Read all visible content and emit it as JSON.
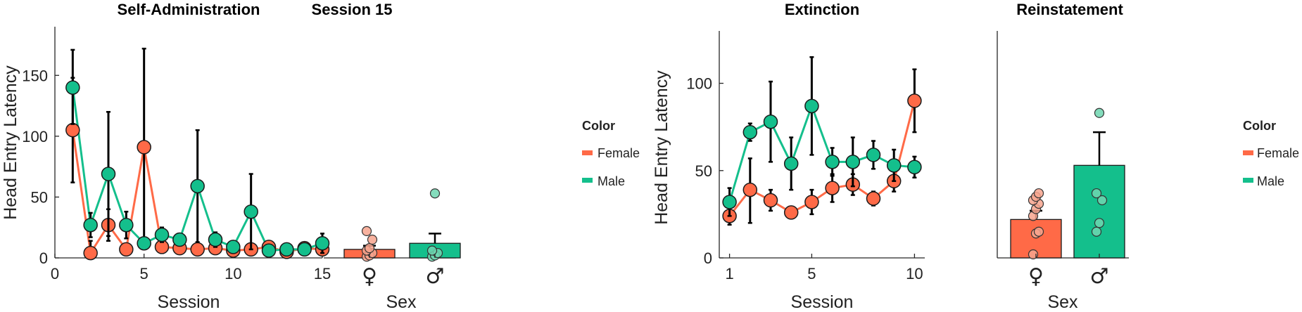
{
  "colors": {
    "female": "#FF6A47",
    "male": "#14BF8C",
    "female_light": "#F7A58E",
    "male_light": "#6ED6B0",
    "errorbar": "#000000"
  },
  "legend": {
    "title": "Color",
    "items": [
      "Female",
      "Male"
    ]
  },
  "chart_data": [
    {
      "type": "line",
      "title": "Self-Administration",
      "xlabel": "Session",
      "ylabel": "Head Entry Latency",
      "xlim": [
        0,
        15
      ],
      "ylim": [
        0,
        190
      ],
      "xticks": [
        "0",
        "5",
        "10",
        "15"
      ],
      "yticks": [
        "0",
        "50",
        "100",
        "150"
      ],
      "x": [
        1,
        2,
        3,
        4,
        5,
        6,
        7,
        8,
        9,
        10,
        11,
        12,
        13,
        14,
        15
      ],
      "series": [
        {
          "name": "Female",
          "values": [
            105,
            4,
            27,
            7,
            91,
            9,
            8,
            7,
            8,
            6,
            7,
            9,
            5,
            8,
            7
          ],
          "err_upper": [
            148,
            14,
            40,
            10,
            172,
            14,
            12,
            10,
            11,
            9,
            10,
            13,
            8,
            11,
            11
          ],
          "err_lower": [
            62,
            0,
            14,
            4,
            10,
            4,
            4,
            4,
            5,
            3,
            4,
            5,
            2,
            5,
            3
          ]
        },
        {
          "name": "Male",
          "values": [
            140,
            27,
            69,
            27,
            12,
            19,
            15,
            59,
            15,
            9,
            38,
            6,
            7,
            7,
            12
          ],
          "err_upper": [
            171,
            37,
            120,
            38,
            14,
            25,
            19,
            105,
            21,
            12,
            69,
            8,
            9,
            9,
            20
          ],
          "err_lower": [
            110,
            17,
            18,
            16,
            10,
            13,
            11,
            13,
            9,
            6,
            7,
            4,
            5,
            5,
            4
          ]
        }
      ]
    },
    {
      "type": "bar",
      "title": "Session 15",
      "xlabel": "Sex",
      "categories": [
        "♀",
        "♂"
      ],
      "ylim": [
        0,
        190
      ],
      "values": [
        7,
        12
      ],
      "err_upper": [
        10,
        20
      ],
      "points": [
        [
          1,
          2,
          4,
          6,
          8,
          15,
          22
        ],
        [
          1,
          2,
          4,
          6,
          53
        ]
      ]
    },
    {
      "type": "line",
      "title": "Extinction",
      "xlabel": "Session",
      "ylabel": "Head Entry Latency",
      "xlim": [
        0.5,
        10.5
      ],
      "ylim": [
        0,
        130
      ],
      "xticks": [
        "1",
        "5",
        "10"
      ],
      "yticks": [
        "0",
        "50",
        "100"
      ],
      "x": [
        1,
        2,
        3,
        4,
        5,
        6,
        7,
        8,
        9,
        10
      ],
      "series": [
        {
          "name": "Female",
          "values": [
            24,
            39,
            33,
            26,
            32,
            40,
            42,
            34,
            44,
            90
          ],
          "err_upper": [
            29,
            57,
            39,
            29,
            39,
            48,
            48,
            38,
            50,
            108
          ],
          "err_lower": [
            19,
            20,
            27,
            23,
            25,
            32,
            36,
            30,
            38,
            72
          ]
        },
        {
          "name": "Male",
          "values": [
            32,
            72,
            78,
            54,
            87,
            55,
            55,
            59,
            53,
            52
          ],
          "err_upper": [
            40,
            77,
            101,
            69,
            115,
            63,
            69,
            67,
            62,
            58
          ],
          "err_lower": [
            24,
            67,
            55,
            39,
            59,
            47,
            41,
            51,
            44,
            46
          ]
        }
      ]
    },
    {
      "type": "bar",
      "title": "Reinstatement",
      "xlabel": "Sex",
      "categories": [
        "♀",
        "♂"
      ],
      "ylim": [
        0,
        130
      ],
      "values": [
        22,
        53
      ],
      "err_upper": [
        27,
        72
      ],
      "points": [
        [
          2,
          14,
          15,
          24,
          28,
          31,
          33,
          35,
          37
        ],
        [
          15,
          20,
          33,
          37,
          83
        ]
      ]
    }
  ]
}
